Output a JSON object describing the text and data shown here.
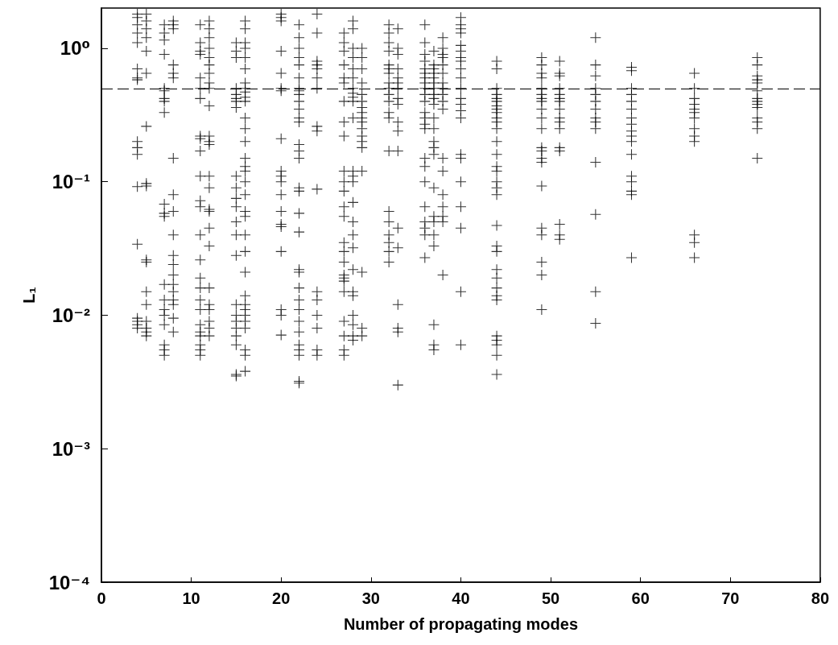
{
  "chart_data": {
    "type": "scatter",
    "xlabel": "Number of propagating modes",
    "ylabel": "L₁",
    "log": "y",
    "marker": "cross",
    "grid": false,
    "xlim": [
      0,
      80
    ],
    "xticks": [
      0,
      10,
      20,
      30,
      40,
      50,
      60,
      70,
      80
    ],
    "ylim": [
      0.0001,
      2
    ],
    "yticks": [
      {
        "value": 0.0001,
        "label": "10⁻⁴"
      },
      {
        "value": 0.001,
        "label": "10⁻³"
      },
      {
        "value": 0.01,
        "label": "10⁻²"
      },
      {
        "value": 0.1,
        "label": "10⁻¹"
      },
      {
        "value": 1,
        "label": "10⁰"
      }
    ],
    "ref_lines": [
      {
        "axis": "y",
        "value": 0.5,
        "color": "#000000",
        "line_style": "dashed"
      }
    ],
    "series": [
      {
        "color": "#000000",
        "x": [
          4,
          4,
          4,
          4,
          4,
          4,
          4,
          4,
          4,
          4,
          4,
          4,
          4,
          4,
          4,
          4,
          4
        ],
        "values": [
          1.8,
          1.7,
          1.5,
          1.3,
          1.1,
          0.7,
          0.6,
          0.58,
          0.2,
          0.18,
          0.16,
          0.092,
          0.034,
          0.0095,
          0.009,
          0.0085,
          0.008
        ]
      },
      {
        "color": "#000000",
        "x": [
          5,
          5,
          5,
          5,
          5,
          5,
          5,
          5,
          5,
          5,
          5,
          5,
          5,
          5,
          5,
          5,
          5
        ],
        "values": [
          1.8,
          1.6,
          1.4,
          1.2,
          0.95,
          0.65,
          0.26,
          0.097,
          0.093,
          0.026,
          0.025,
          0.015,
          0.012,
          0.009,
          0.008,
          0.0075,
          0.007
        ]
      },
      {
        "color": "#000000",
        "x": [
          7,
          7,
          7,
          7,
          7,
          7,
          7,
          7,
          7,
          7,
          7,
          7,
          7,
          7,
          7,
          7,
          7,
          7,
          7,
          7
        ],
        "values": [
          1.5,
          1.3,
          1.15,
          0.9,
          0.5,
          0.48,
          0.42,
          0.4,
          0.33,
          0.068,
          0.058,
          0.055,
          0.017,
          0.013,
          0.011,
          0.01,
          0.0085,
          0.006,
          0.0055,
          0.005
        ]
      },
      {
        "color": "#000000",
        "x": [
          8,
          8,
          8,
          8,
          8,
          8,
          8,
          8,
          8,
          8,
          8,
          8,
          8,
          8,
          8,
          8,
          8,
          8,
          8
        ],
        "values": [
          1.6,
          1.5,
          1.4,
          0.75,
          0.65,
          0.6,
          0.15,
          0.08,
          0.06,
          0.04,
          0.028,
          0.024,
          0.02,
          0.017,
          0.015,
          0.013,
          0.012,
          0.0095,
          0.0075
        ]
      },
      {
        "color": "#000000",
        "x": [
          11,
          11,
          11,
          11,
          11,
          11,
          11,
          11,
          11,
          11,
          11,
          11,
          11,
          11,
          11,
          11,
          11,
          11,
          11,
          11,
          11,
          11,
          11,
          11,
          11
        ],
        "values": [
          1.5,
          1.1,
          0.95,
          0.9,
          0.6,
          0.5,
          0.42,
          0.22,
          0.21,
          0.17,
          0.11,
          0.072,
          0.065,
          0.04,
          0.026,
          0.019,
          0.016,
          0.013,
          0.011,
          0.0085,
          0.0075,
          0.007,
          0.006,
          0.0055,
          0.005
        ]
      },
      {
        "color": "#000000",
        "x": [
          12,
          12,
          12,
          12,
          12,
          12,
          12,
          12,
          12,
          12,
          12,
          12,
          12,
          12,
          12,
          12,
          12,
          12,
          12,
          12,
          12,
          12,
          12,
          12,
          12
        ],
        "values": [
          1.6,
          1.4,
          1.2,
          1.0,
          0.85,
          0.75,
          0.65,
          0.55,
          0.5,
          0.37,
          0.22,
          0.2,
          0.19,
          0.11,
          0.09,
          0.062,
          0.06,
          0.045,
          0.033,
          0.016,
          0.012,
          0.011,
          0.009,
          0.008,
          0.007
        ]
      },
      {
        "color": "#000000",
        "x": [
          15,
          15,
          15,
          15,
          15,
          15,
          15,
          15,
          15,
          15,
          15,
          15,
          15,
          15,
          15,
          15,
          15,
          15,
          15,
          15,
          15,
          15,
          15
        ],
        "values": [
          1.1,
          0.95,
          0.85,
          0.5,
          0.45,
          0.42,
          0.4,
          0.36,
          0.11,
          0.09,
          0.075,
          0.065,
          0.05,
          0.04,
          0.028,
          0.012,
          0.01,
          0.009,
          0.008,
          0.007,
          0.006,
          0.0036,
          0.0035
        ]
      },
      {
        "color": "#000000",
        "x": [
          16,
          16,
          16,
          16,
          16,
          16,
          16,
          16,
          16,
          16,
          16,
          16,
          16,
          16,
          16,
          16,
          16,
          16,
          16,
          16,
          16,
          16,
          16,
          16,
          16,
          16,
          16,
          16,
          16,
          16,
          16,
          16,
          16
        ],
        "values": [
          1.6,
          1.4,
          1.1,
          1.0,
          0.85,
          0.7,
          0.55,
          0.5,
          0.47,
          0.43,
          0.4,
          0.3,
          0.25,
          0.2,
          0.15,
          0.13,
          0.12,
          0.1,
          0.08,
          0.06,
          0.055,
          0.04,
          0.03,
          0.021,
          0.014,
          0.012,
          0.011,
          0.01,
          0.009,
          0.008,
          0.0055,
          0.005,
          0.0038
        ]
      },
      {
        "color": "#000000",
        "x": [
          20,
          20,
          20,
          20,
          20,
          20,
          20,
          20,
          20,
          20,
          20,
          20,
          20,
          20,
          20,
          20,
          20,
          20,
          20
        ],
        "values": [
          1.8,
          1.7,
          1.6,
          0.95,
          0.65,
          0.5,
          0.48,
          0.21,
          0.12,
          0.11,
          0.1,
          0.08,
          0.06,
          0.048,
          0.046,
          0.03,
          0.011,
          0.01,
          0.0071
        ]
      },
      {
        "color": "#000000",
        "x": [
          22,
          22,
          22,
          22,
          22,
          22,
          22,
          22,
          22,
          22,
          22,
          22,
          22,
          22,
          22,
          22,
          22,
          22,
          22,
          22,
          22,
          22,
          22,
          22,
          22,
          22,
          22,
          22,
          22,
          22,
          22,
          22
        ],
        "values": [
          1.5,
          1.2,
          1.0,
          0.85,
          0.75,
          0.6,
          0.5,
          0.48,
          0.45,
          0.4,
          0.35,
          0.3,
          0.28,
          0.19,
          0.17,
          0.15,
          0.09,
          0.085,
          0.058,
          0.042,
          0.022,
          0.021,
          0.016,
          0.013,
          0.011,
          0.009,
          0.0075,
          0.006,
          0.0055,
          0.005,
          0.0032,
          0.0031
        ]
      },
      {
        "color": "#000000",
        "x": [
          24,
          24,
          24,
          24,
          24,
          24,
          24,
          24,
          24,
          24,
          24,
          24,
          24,
          24,
          24,
          24
        ],
        "values": [
          1.8,
          1.3,
          0.8,
          0.75,
          0.7,
          0.6,
          0.5,
          0.26,
          0.24,
          0.088,
          0.015,
          0.013,
          0.01,
          0.008,
          0.0055,
          0.005
        ]
      },
      {
        "color": "#000000",
        "x": [
          27,
          27,
          27,
          27,
          27,
          27,
          27,
          27,
          27,
          27,
          27,
          27,
          27,
          27,
          27,
          27,
          27,
          27,
          27,
          27,
          27,
          27,
          27,
          27,
          27
        ],
        "values": [
          1.3,
          1.1,
          0.95,
          0.75,
          0.6,
          0.55,
          0.4,
          0.28,
          0.22,
          0.12,
          0.1,
          0.085,
          0.065,
          0.055,
          0.035,
          0.03,
          0.025,
          0.02,
          0.019,
          0.018,
          0.015,
          0.009,
          0.007,
          0.0055,
          0.005
        ]
      },
      {
        "color": "#000000",
        "x": [
          28,
          28,
          28,
          28,
          28,
          28,
          28,
          28,
          28,
          28,
          28,
          28,
          28,
          28,
          28,
          28,
          28,
          28,
          28,
          28,
          28,
          28,
          28,
          28,
          28
        ],
        "values": [
          1.6,
          1.4,
          1.0,
          0.85,
          0.7,
          0.6,
          0.5,
          0.46,
          0.43,
          0.4,
          0.3,
          0.12,
          0.11,
          0.1,
          0.07,
          0.05,
          0.04,
          0.032,
          0.022,
          0.015,
          0.014,
          0.01,
          0.0085,
          0.007,
          0.0065
        ]
      },
      {
        "color": "#000000",
        "x": [
          29,
          29,
          29,
          29,
          29,
          29,
          29,
          29,
          29,
          29,
          29,
          29,
          29,
          29,
          29,
          29,
          29,
          29
        ],
        "values": [
          1.0,
          0.85,
          0.7,
          0.55,
          0.45,
          0.4,
          0.36,
          0.33,
          0.3,
          0.28,
          0.25,
          0.22,
          0.2,
          0.18,
          0.12,
          0.021,
          0.008,
          0.007
        ]
      },
      {
        "color": "#000000",
        "x": [
          32,
          32,
          32,
          32,
          32,
          32,
          32,
          32,
          32,
          32,
          32,
          32,
          32,
          32,
          32,
          32,
          32,
          32,
          32,
          32
        ],
        "values": [
          1.5,
          1.3,
          1.1,
          0.95,
          0.75,
          0.7,
          0.65,
          0.55,
          0.5,
          0.45,
          0.4,
          0.33,
          0.3,
          0.17,
          0.06,
          0.05,
          0.04,
          0.035,
          0.03,
          0.025
        ]
      },
      {
        "color": "#000000",
        "x": [
          33,
          33,
          33,
          33,
          33,
          33,
          33,
          33,
          33,
          33,
          33,
          33,
          33,
          33,
          33,
          33,
          33,
          33
        ],
        "values": [
          1.4,
          1.0,
          0.9,
          0.7,
          0.6,
          0.55,
          0.5,
          0.42,
          0.38,
          0.28,
          0.24,
          0.17,
          0.045,
          0.032,
          0.012,
          0.008,
          0.0075,
          0.003
        ]
      },
      {
        "color": "#000000",
        "x": [
          36,
          36,
          36,
          36,
          36,
          36,
          36,
          36,
          36,
          36,
          36,
          36,
          36,
          36,
          36,
          36,
          36,
          36,
          36,
          36,
          36,
          36,
          36
        ],
        "values": [
          1.5,
          1.1,
          0.9,
          0.8,
          0.7,
          0.65,
          0.6,
          0.55,
          0.5,
          0.45,
          0.4,
          0.33,
          0.3,
          0.27,
          0.25,
          0.15,
          0.13,
          0.1,
          0.065,
          0.05,
          0.045,
          0.04,
          0.027
        ]
      },
      {
        "color": "#000000",
        "x": [
          37,
          37,
          37,
          37,
          37,
          37,
          37,
          37,
          37,
          37,
          37,
          37,
          37,
          37,
          37,
          37,
          37,
          37,
          37,
          37,
          37,
          37,
          37
        ],
        "values": [
          0.95,
          0.75,
          0.7,
          0.65,
          0.6,
          0.55,
          0.5,
          0.45,
          0.42,
          0.38,
          0.3,
          0.25,
          0.2,
          0.18,
          0.16,
          0.09,
          0.055,
          0.05,
          0.04,
          0.033,
          0.0085,
          0.006,
          0.0055
        ]
      },
      {
        "color": "#000000",
        "x": [
          38,
          38,
          38,
          38,
          38,
          38,
          38,
          38,
          38,
          38,
          38,
          38,
          38,
          38,
          38,
          38,
          38,
          38
        ],
        "values": [
          1.2,
          1.0,
          0.9,
          0.85,
          0.75,
          0.65,
          0.55,
          0.5,
          0.45,
          0.4,
          0.35,
          0.15,
          0.12,
          0.08,
          0.065,
          0.055,
          0.05,
          0.02
        ]
      },
      {
        "color": "#000000",
        "x": [
          40,
          40,
          40,
          40,
          40,
          40,
          40,
          40,
          40,
          40,
          40,
          40,
          40,
          40,
          40,
          40,
          40,
          40,
          40,
          40,
          40,
          40
        ],
        "values": [
          1.7,
          1.5,
          1.4,
          1.3,
          1.05,
          0.95,
          0.85,
          0.8,
          0.7,
          0.6,
          0.5,
          0.42,
          0.38,
          0.34,
          0.3,
          0.16,
          0.15,
          0.1,
          0.065,
          0.045,
          0.015,
          0.006
        ]
      },
      {
        "color": "#000000",
        "x": [
          44,
          44,
          44,
          44,
          44,
          44,
          44,
          44,
          44,
          44,
          44,
          44,
          44,
          44,
          44,
          44,
          44,
          44,
          44,
          44,
          44,
          44,
          44,
          44,
          44,
          44,
          44,
          44,
          44,
          44,
          44,
          44
        ],
        "values": [
          0.8,
          0.7,
          0.5,
          0.45,
          0.42,
          0.4,
          0.37,
          0.35,
          0.33,
          0.3,
          0.28,
          0.25,
          0.2,
          0.16,
          0.13,
          0.12,
          0.1,
          0.09,
          0.08,
          0.047,
          0.033,
          0.03,
          0.022,
          0.019,
          0.016,
          0.014,
          0.013,
          0.007,
          0.0065,
          0.006,
          0.005,
          0.0036
        ]
      },
      {
        "color": "#000000",
        "x": [
          49,
          49,
          49,
          49,
          49,
          49,
          49,
          49,
          49,
          49,
          49,
          49,
          49,
          49,
          49,
          49,
          49,
          49,
          49,
          49,
          49
        ],
        "values": [
          0.85,
          0.75,
          0.65,
          0.6,
          0.5,
          0.45,
          0.42,
          0.4,
          0.35,
          0.3,
          0.25,
          0.18,
          0.17,
          0.15,
          0.14,
          0.093,
          0.045,
          0.04,
          0.025,
          0.02,
          0.011
        ]
      },
      {
        "color": "#000000",
        "x": [
          51,
          51,
          51,
          51,
          51,
          51,
          51,
          51,
          51,
          51,
          51,
          51,
          51,
          51,
          51,
          51
        ],
        "values": [
          0.8,
          0.65,
          0.62,
          0.5,
          0.45,
          0.42,
          0.4,
          0.35,
          0.3,
          0.28,
          0.25,
          0.18,
          0.17,
          0.048,
          0.04,
          0.037
        ]
      },
      {
        "color": "#000000",
        "x": [
          55,
          55,
          55,
          55,
          55,
          55,
          55,
          55,
          55,
          55,
          55,
          55,
          55,
          55
        ],
        "values": [
          1.2,
          0.75,
          0.62,
          0.5,
          0.45,
          0.4,
          0.35,
          0.3,
          0.28,
          0.25,
          0.14,
          0.057,
          0.015,
          0.0087
        ]
      },
      {
        "color": "#000000",
        "x": [
          59,
          59,
          59,
          59,
          59,
          59,
          59,
          59,
          59,
          59,
          59,
          59,
          59,
          59,
          59,
          59,
          59
        ],
        "values": [
          0.72,
          0.68,
          0.5,
          0.45,
          0.4,
          0.35,
          0.3,
          0.27,
          0.24,
          0.22,
          0.2,
          0.16,
          0.11,
          0.1,
          0.085,
          0.08,
          0.027
        ]
      },
      {
        "color": "#000000",
        "x": [
          66,
          66,
          66,
          66,
          66,
          66,
          66,
          66,
          66,
          66,
          66,
          66,
          66
        ],
        "values": [
          0.65,
          0.5,
          0.42,
          0.38,
          0.35,
          0.33,
          0.3,
          0.25,
          0.22,
          0.2,
          0.04,
          0.035,
          0.027
        ]
      },
      {
        "color": "#000000",
        "x": [
          73,
          73,
          73,
          73,
          73,
          73,
          73,
          73,
          73,
          73,
          73,
          73,
          73,
          73
        ],
        "values": [
          0.85,
          0.75,
          0.62,
          0.58,
          0.55,
          0.48,
          0.42,
          0.4,
          0.38,
          0.36,
          0.3,
          0.28,
          0.25,
          0.15
        ]
      }
    ]
  }
}
